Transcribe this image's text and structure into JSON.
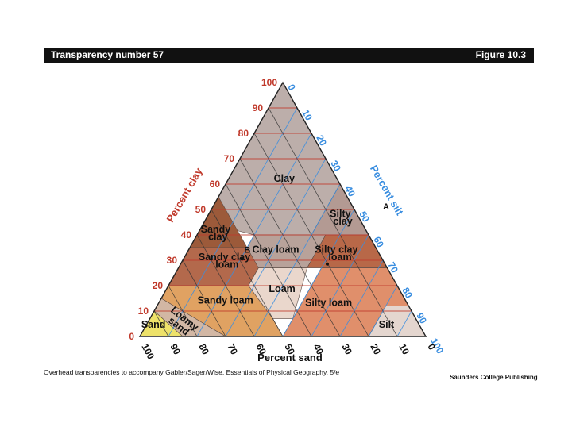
{
  "header": {
    "left": "Transparency number 57",
    "right": "Figure 10.3"
  },
  "footer": {
    "left": "Overhead transparencies to accompany Gabler/Sager/Wise, Essentials of Physical Geography, 5/e",
    "right": "Saunders College Publishing"
  },
  "axes": {
    "clay": {
      "title": "Percent clay",
      "ticks": [
        "0",
        "10",
        "20",
        "30",
        "40",
        "50",
        "60",
        "70",
        "80",
        "90",
        "100"
      ],
      "color": "#c0392b"
    },
    "silt": {
      "title": "Percent silt",
      "ticks": [
        "0",
        "10",
        "20",
        "30",
        "40",
        "50",
        "60",
        "70",
        "80",
        "90",
        "100"
      ],
      "color": "#3a8ee0"
    },
    "sand": {
      "title": "Percent sand",
      "ticks": [
        "100",
        "90",
        "80",
        "70",
        "60",
        "50",
        "40",
        "30",
        "20",
        "10",
        "0"
      ],
      "color": "#111111"
    }
  },
  "regions": [
    {
      "label": "Clay",
      "color": "#bcaeaa"
    },
    {
      "label": "Silty clay",
      "color": "#b39a93"
    },
    {
      "label": "Sandy clay",
      "color": "#9c5a3a"
    },
    {
      "label": "Clay loam",
      "color": "#b8a29a"
    },
    {
      "label": "Silty clay loam",
      "color": "#b86848"
    },
    {
      "label": "Sandy clay loam",
      "color": "#b3694c"
    },
    {
      "label": "Loam",
      "color": "#ead7cc"
    },
    {
      "label": "Sandy loam",
      "color": "#e0a262"
    },
    {
      "label": "Silty loam",
      "color": "#e08f6b"
    },
    {
      "label": "Loamy sand",
      "color": "#d2b7a4"
    },
    {
      "label": "Sand",
      "color": "#eee26a"
    },
    {
      "label": "Silt",
      "color": "#e4d6cf"
    }
  ],
  "points": [
    {
      "label": "A"
    },
    {
      "label": "B"
    }
  ]
}
